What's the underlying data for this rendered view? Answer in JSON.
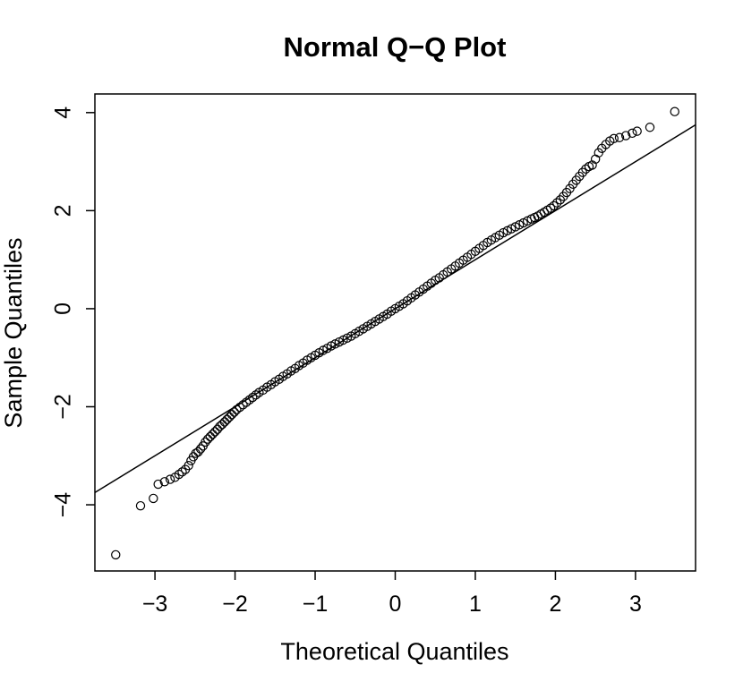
{
  "chart_data": {
    "type": "scatter",
    "title": "Normal Q−Q Plot",
    "xlabel": "Theoretical Quantiles",
    "ylabel": "Sample Quantiles",
    "xlim": [
      -3.75,
      3.75
    ],
    "ylim": [
      -5.35,
      4.38
    ],
    "x_ticks": [
      -3,
      -2,
      -1,
      0,
      1,
      2,
      3
    ],
    "x_tick_labels": [
      "−3",
      "−2",
      "−1",
      "0",
      "1",
      "2",
      "3"
    ],
    "y_ticks": [
      -4,
      -2,
      0,
      2,
      4
    ],
    "y_tick_labels": [
      "−4",
      "−2",
      "0",
      "2",
      "4"
    ],
    "grid": false,
    "reference_line": {
      "slope": 1.0,
      "intercept": 0.0
    },
    "points": {
      "x": [
        -3.49,
        -3.18,
        -3.02,
        -2.96,
        -2.88,
        -2.81,
        -2.75,
        -2.7,
        -2.66,
        -2.62,
        -2.58,
        -2.55,
        -2.52,
        -2.49,
        -2.46,
        -2.43,
        -2.4,
        -2.37,
        -2.34,
        -2.31,
        -2.28,
        -2.25,
        -2.22,
        -2.19,
        -2.16,
        -2.13,
        -2.1,
        -2.07,
        -2.04,
        -2.01,
        -1.98,
        -1.94,
        -1.9,
        -1.86,
        -1.82,
        -1.78,
        -1.74,
        -1.7,
        -1.65,
        -1.6,
        -1.55,
        -1.5,
        -1.45,
        -1.4,
        -1.35,
        -1.3,
        -1.25,
        -1.2,
        -1.15,
        -1.1,
        -1.05,
        -1.0,
        -0.95,
        -0.9,
        -0.85,
        -0.8,
        -0.75,
        -0.7,
        -0.65,
        -0.6,
        -0.55,
        -0.5,
        -0.45,
        -0.4,
        -0.35,
        -0.3,
        -0.25,
        -0.2,
        -0.15,
        -0.1,
        -0.05,
        0.0,
        0.05,
        0.1,
        0.15,
        0.2,
        0.25,
        0.3,
        0.35,
        0.4,
        0.45,
        0.5,
        0.55,
        0.6,
        0.65,
        0.7,
        0.75,
        0.8,
        0.85,
        0.9,
        0.95,
        1.0,
        1.05,
        1.1,
        1.15,
        1.2,
        1.25,
        1.3,
        1.35,
        1.4,
        1.45,
        1.5,
        1.55,
        1.6,
        1.65,
        1.7,
        1.74,
        1.78,
        1.82,
        1.86,
        1.9,
        1.94,
        1.98,
        2.02,
        2.06,
        2.1,
        2.14,
        2.18,
        2.22,
        2.26,
        2.3,
        2.34,
        2.38,
        2.42,
        2.46,
        2.5,
        2.54,
        2.58,
        2.63,
        2.68,
        2.73,
        2.8,
        2.88,
        2.96,
        3.02,
        3.18,
        3.49
      ],
      "y": [
        -5.02,
        -4.02,
        -3.87,
        -3.58,
        -3.53,
        -3.48,
        -3.44,
        -3.38,
        -3.33,
        -3.28,
        -3.2,
        -3.1,
        -3.02,
        -2.95,
        -2.92,
        -2.86,
        -2.8,
        -2.72,
        -2.66,
        -2.61,
        -2.56,
        -2.51,
        -2.46,
        -2.4,
        -2.36,
        -2.31,
        -2.26,
        -2.21,
        -2.16,
        -2.11,
        -2.06,
        -2.01,
        -1.96,
        -1.91,
        -1.86,
        -1.81,
        -1.76,
        -1.71,
        -1.66,
        -1.6,
        -1.55,
        -1.49,
        -1.44,
        -1.38,
        -1.33,
        -1.27,
        -1.22,
        -1.16,
        -1.11,
        -1.05,
        -1.0,
        -0.95,
        -0.9,
        -0.85,
        -0.81,
        -0.76,
        -0.72,
        -0.68,
        -0.64,
        -0.6,
        -0.56,
        -0.51,
        -0.46,
        -0.41,
        -0.36,
        -0.31,
        -0.26,
        -0.21,
        -0.16,
        -0.11,
        -0.05,
        0.0,
        0.05,
        0.1,
        0.16,
        0.22,
        0.28,
        0.34,
        0.4,
        0.46,
        0.52,
        0.58,
        0.63,
        0.69,
        0.75,
        0.81,
        0.87,
        0.93,
        0.99,
        1.05,
        1.11,
        1.17,
        1.23,
        1.29,
        1.35,
        1.4,
        1.45,
        1.5,
        1.55,
        1.59,
        1.63,
        1.67,
        1.71,
        1.75,
        1.79,
        1.83,
        1.86,
        1.89,
        1.93,
        1.97,
        2.01,
        2.05,
        2.1,
        2.16,
        2.22,
        2.29,
        2.37,
        2.45,
        2.54,
        2.62,
        2.7,
        2.78,
        2.85,
        2.9,
        2.93,
        3.05,
        3.18,
        3.27,
        3.35,
        3.42,
        3.47,
        3.49,
        3.53,
        3.58,
        3.62,
        3.7,
        4.02
      ]
    }
  }
}
